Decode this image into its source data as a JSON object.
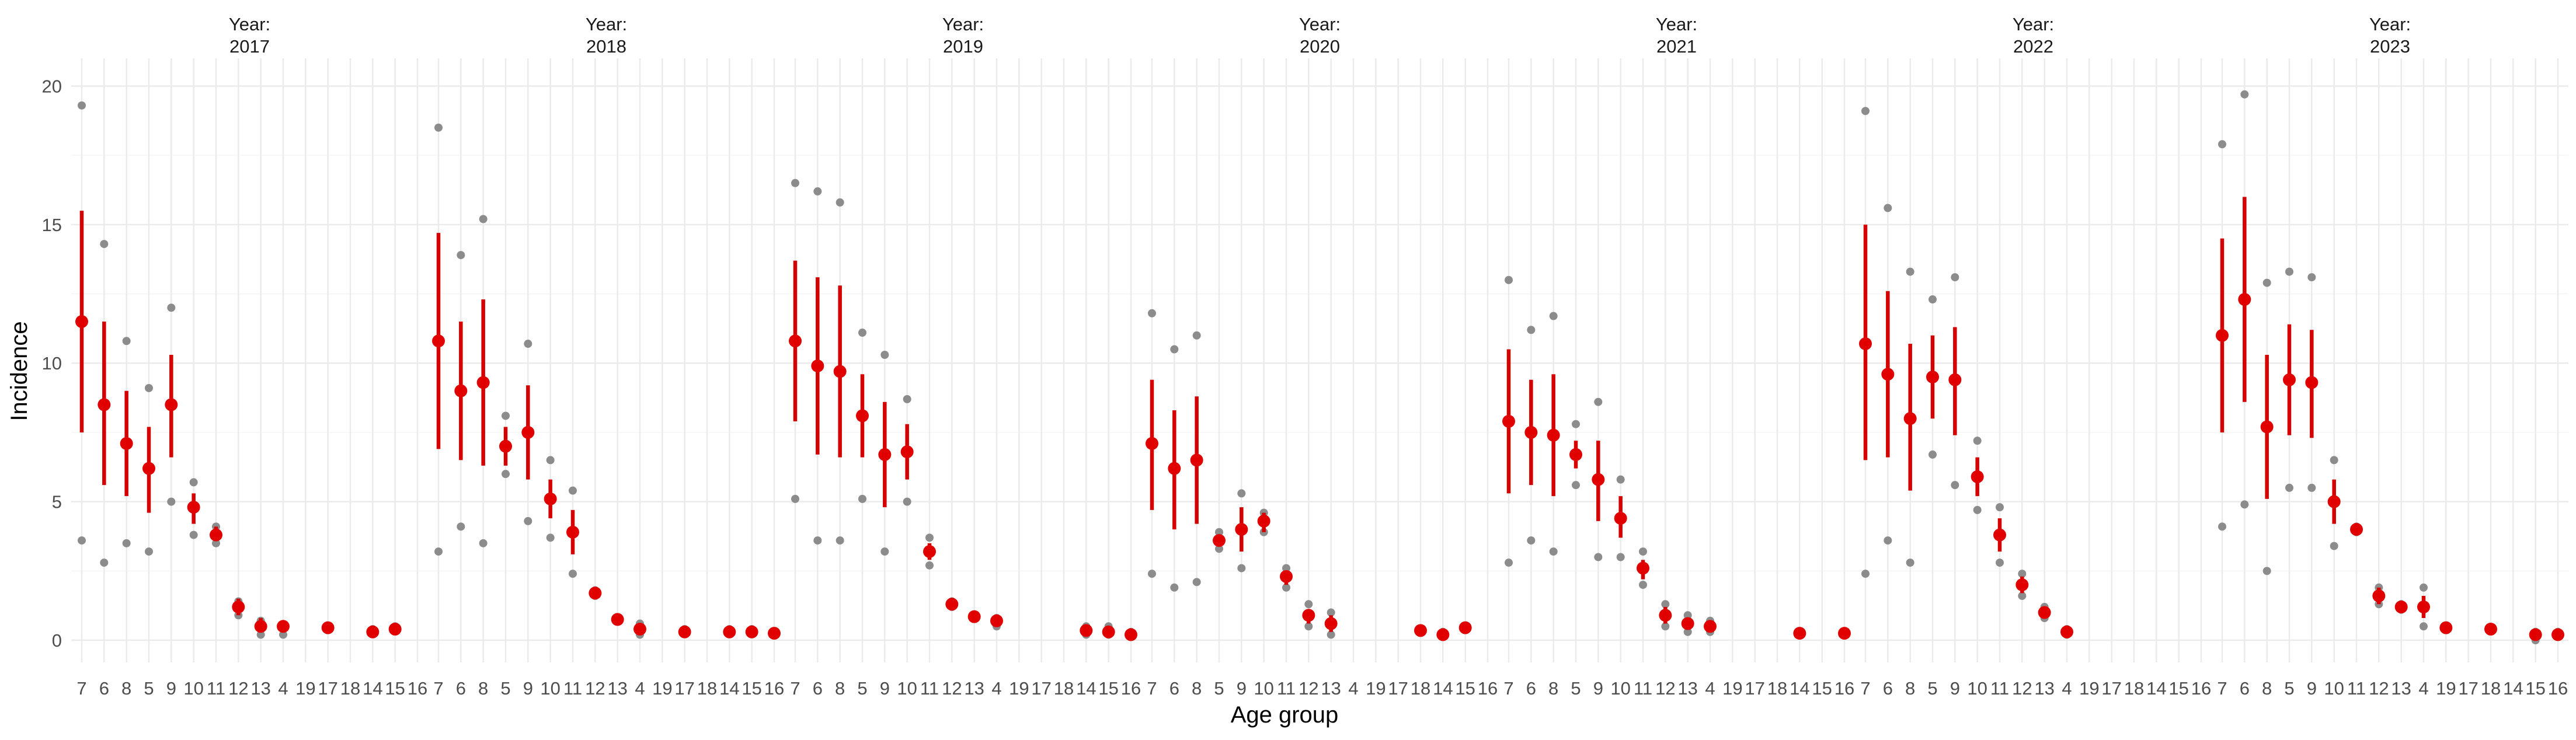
{
  "chart_data": {
    "type": "scatter",
    "title": "",
    "xlabel": "Age group",
    "ylabel": "Incidence",
    "ylim": [
      -0.8,
      21
    ],
    "yticks": [
      0,
      5,
      10,
      15,
      20
    ],
    "categories": [
      "7",
      "6",
      "8",
      "5",
      "9",
      "10",
      "11",
      "12",
      "13",
      "4",
      "19",
      "17",
      "18",
      "14",
      "15",
      "16"
    ],
    "facet_label_prefix": "Year:",
    "colors": {
      "mean": "#e00000",
      "ci": "#d40000",
      "obs": "#8c8c8c",
      "grid": "#ebebeb",
      "grid_minor": "#f5f5f5"
    },
    "panels": [
      {
        "year": "2017",
        "points": [
          {
            "age": "7",
            "mean": 11.5,
            "lo": 7.5,
            "hi": 15.5,
            "obs": [
              19.3,
              3.6
            ]
          },
          {
            "age": "6",
            "mean": 8.5,
            "lo": 5.6,
            "hi": 11.5,
            "obs": [
              14.3,
              2.8
            ]
          },
          {
            "age": "8",
            "mean": 7.1,
            "lo": 5.2,
            "hi": 9.0,
            "obs": [
              10.8,
              3.5
            ]
          },
          {
            "age": "5",
            "mean": 6.2,
            "lo": 4.6,
            "hi": 7.7,
            "obs": [
              9.1,
              3.2
            ]
          },
          {
            "age": "9",
            "mean": 8.5,
            "lo": 6.6,
            "hi": 10.3,
            "obs": [
              12.0,
              5.0
            ]
          },
          {
            "age": "10",
            "mean": 4.8,
            "lo": 4.2,
            "hi": 5.3,
            "obs": [
              5.7,
              3.8
            ]
          },
          {
            "age": "11",
            "mean": 3.8,
            "lo": 3.6,
            "hi": 4.1,
            "obs": [
              4.1,
              3.5
            ]
          },
          {
            "age": "12",
            "mean": 1.2,
            "lo": 0.9,
            "hi": 1.5,
            "obs": [
              1.4,
              0.9
            ]
          },
          {
            "age": "13",
            "mean": 0.5,
            "lo": 0.3,
            "hi": 0.8,
            "obs": [
              0.7,
              0.2
            ]
          },
          {
            "age": "4",
            "mean": 0.5,
            "lo": 0.4,
            "hi": 0.6,
            "obs": [
              0.5,
              0.2
            ]
          },
          {
            "age": "17",
            "mean": 0.45,
            "lo": 0.4,
            "hi": 0.5,
            "obs": [
              0.5
            ]
          },
          {
            "age": "14",
            "mean": 0.3,
            "lo": 0.2,
            "hi": 0.4,
            "obs": [
              0.4
            ]
          },
          {
            "age": "15",
            "mean": 0.4,
            "lo": 0.3,
            "hi": 0.5,
            "obs": [
              0.5
            ]
          }
        ]
      },
      {
        "year": "2018",
        "points": [
          {
            "age": "7",
            "mean": 10.8,
            "lo": 6.9,
            "hi": 14.7,
            "obs": [
              18.5,
              3.2
            ]
          },
          {
            "age": "6",
            "mean": 9.0,
            "lo": 6.5,
            "hi": 11.5,
            "obs": [
              13.9,
              4.1
            ]
          },
          {
            "age": "8",
            "mean": 9.3,
            "lo": 6.3,
            "hi": 12.3,
            "obs": [
              15.2,
              3.5
            ]
          },
          {
            "age": "5",
            "mean": 7.0,
            "lo": 6.3,
            "hi": 7.7,
            "obs": [
              8.1,
              6.0
            ]
          },
          {
            "age": "9",
            "mean": 7.5,
            "lo": 5.8,
            "hi": 9.2,
            "obs": [
              10.7,
              4.3
            ]
          },
          {
            "age": "10",
            "mean": 5.1,
            "lo": 4.4,
            "hi": 5.8,
            "obs": [
              6.5,
              3.7
            ]
          },
          {
            "age": "11",
            "mean": 3.9,
            "lo": 3.1,
            "hi": 4.7,
            "obs": [
              5.4,
              2.4
            ]
          },
          {
            "age": "12",
            "mean": 1.7,
            "lo": 1.5,
            "hi": 1.8,
            "obs": [
              1.8,
              1.6
            ]
          },
          {
            "age": "13",
            "mean": 0.75,
            "lo": 0.7,
            "hi": 0.8,
            "obs": [
              0.8,
              0.7
            ]
          },
          {
            "age": "4",
            "mean": 0.4,
            "lo": 0.3,
            "hi": 0.6,
            "obs": [
              0.6,
              0.2
            ]
          },
          {
            "age": "17",
            "mean": 0.3,
            "lo": 0.2,
            "hi": 0.4,
            "obs": [
              0.4
            ]
          },
          {
            "age": "14",
            "mean": 0.3,
            "lo": 0.2,
            "hi": 0.4,
            "obs": [
              0.4
            ]
          },
          {
            "age": "15",
            "mean": 0.3,
            "lo": 0.2,
            "hi": 0.4,
            "obs": [
              0.4
            ]
          },
          {
            "age": "16",
            "mean": 0.25,
            "lo": 0.2,
            "hi": 0.3,
            "obs": [
              0.3
            ]
          }
        ]
      },
      {
        "year": "2019",
        "points": [
          {
            "age": "7",
            "mean": 10.8,
            "lo": 7.9,
            "hi": 13.7,
            "obs": [
              16.5,
              5.1
            ]
          },
          {
            "age": "6",
            "mean": 9.9,
            "lo": 6.7,
            "hi": 13.1,
            "obs": [
              16.2,
              3.6
            ]
          },
          {
            "age": "8",
            "mean": 9.7,
            "lo": 6.6,
            "hi": 12.8,
            "obs": [
              15.8,
              3.6
            ]
          },
          {
            "age": "5",
            "mean": 8.1,
            "lo": 6.6,
            "hi": 9.6,
            "obs": [
              11.1,
              5.1
            ]
          },
          {
            "age": "9",
            "mean": 6.7,
            "lo": 4.8,
            "hi": 8.6,
            "obs": [
              10.3,
              3.2
            ]
          },
          {
            "age": "10",
            "mean": 6.8,
            "lo": 5.8,
            "hi": 7.8,
            "obs": [
              8.7,
              5.0
            ]
          },
          {
            "age": "11",
            "mean": 3.2,
            "lo": 2.9,
            "hi": 3.5,
            "obs": [
              3.7,
              2.7
            ]
          },
          {
            "age": "12",
            "mean": 1.3,
            "lo": 1.2,
            "hi": 1.4,
            "obs": [
              1.4,
              1.2
            ]
          },
          {
            "age": "13",
            "mean": 0.85,
            "lo": 0.8,
            "hi": 0.9,
            "obs": [
              0.9,
              0.8
            ]
          },
          {
            "age": "4",
            "mean": 0.7,
            "lo": 0.6,
            "hi": 0.8,
            "obs": [
              0.8,
              0.5
            ]
          },
          {
            "age": "14",
            "mean": 0.35,
            "lo": 0.2,
            "hi": 0.5,
            "obs": [
              0.5,
              0.2
            ]
          },
          {
            "age": "15",
            "mean": 0.3,
            "lo": 0.2,
            "hi": 0.4,
            "obs": [
              0.5,
              0.2
            ]
          },
          {
            "age": "16",
            "mean": 0.2,
            "lo": 0.15,
            "hi": 0.25,
            "obs": [
              0.3
            ]
          }
        ]
      },
      {
        "year": "2020",
        "points": [
          {
            "age": "7",
            "mean": 7.1,
            "lo": 4.7,
            "hi": 9.4,
            "obs": [
              11.8,
              2.4
            ]
          },
          {
            "age": "6",
            "mean": 6.2,
            "lo": 4.0,
            "hi": 8.3,
            "obs": [
              10.5,
              1.9
            ]
          },
          {
            "age": "8",
            "mean": 6.5,
            "lo": 4.2,
            "hi": 8.8,
            "obs": [
              11.0,
              2.1
            ]
          },
          {
            "age": "5",
            "mean": 3.6,
            "lo": 3.4,
            "hi": 3.8,
            "obs": [
              3.9,
              3.3
            ]
          },
          {
            "age": "9",
            "mean": 4.0,
            "lo": 3.2,
            "hi": 4.8,
            "obs": [
              5.3,
              2.6
            ]
          },
          {
            "age": "10",
            "mean": 4.3,
            "lo": 3.9,
            "hi": 4.6,
            "obs": [
              4.6,
              3.9
            ]
          },
          {
            "age": "11",
            "mean": 2.3,
            "lo": 2.0,
            "hi": 2.5,
            "obs": [
              2.6,
              1.9
            ]
          },
          {
            "age": "12",
            "mean": 0.9,
            "lo": 0.6,
            "hi": 1.1,
            "obs": [
              1.3,
              0.5
            ]
          },
          {
            "age": "13",
            "mean": 0.6,
            "lo": 0.3,
            "hi": 0.9,
            "obs": [
              1.0,
              0.2
            ]
          },
          {
            "age": "18",
            "mean": 0.35,
            "lo": 0.3,
            "hi": 0.4,
            "obs": [
              0.4
            ]
          },
          {
            "age": "14",
            "mean": 0.2,
            "lo": 0.15,
            "hi": 0.25,
            "obs": [
              0.3
            ]
          },
          {
            "age": "15",
            "mean": 0.45,
            "lo": 0.35,
            "hi": 0.55,
            "obs": [
              0.5
            ]
          }
        ]
      },
      {
        "year": "2021",
        "points": [
          {
            "age": "7",
            "mean": 7.9,
            "lo": 5.3,
            "hi": 10.5,
            "obs": [
              13.0,
              2.8
            ]
          },
          {
            "age": "6",
            "mean": 7.5,
            "lo": 5.6,
            "hi": 9.4,
            "obs": [
              11.2,
              3.6
            ]
          },
          {
            "age": "8",
            "mean": 7.4,
            "lo": 5.2,
            "hi": 9.6,
            "obs": [
              11.7,
              3.2
            ]
          },
          {
            "age": "5",
            "mean": 6.7,
            "lo": 6.2,
            "hi": 7.2,
            "obs": [
              7.8,
              5.6
            ]
          },
          {
            "age": "9",
            "mean": 5.8,
            "lo": 4.3,
            "hi": 7.2,
            "obs": [
              8.6,
              3.0
            ]
          },
          {
            "age": "10",
            "mean": 4.4,
            "lo": 3.7,
            "hi": 5.2,
            "obs": [
              5.8,
              3.0
            ]
          },
          {
            "age": "11",
            "mean": 2.6,
            "lo": 2.2,
            "hi": 2.9,
            "obs": [
              3.2,
              2.0
            ]
          },
          {
            "age": "12",
            "mean": 0.9,
            "lo": 0.6,
            "hi": 1.2,
            "obs": [
              1.3,
              0.5
            ]
          },
          {
            "age": "13",
            "mean": 0.6,
            "lo": 0.4,
            "hi": 0.8,
            "obs": [
              0.9,
              0.3
            ]
          },
          {
            "age": "4",
            "mean": 0.5,
            "lo": 0.3,
            "hi": 0.7,
            "obs": [
              0.7,
              0.3
            ]
          },
          {
            "age": "14",
            "mean": 0.25,
            "lo": 0.2,
            "hi": 0.3,
            "obs": [
              0.3
            ]
          },
          {
            "age": "16",
            "mean": 0.25,
            "lo": 0.2,
            "hi": 0.3,
            "obs": [
              0.3
            ]
          }
        ]
      },
      {
        "year": "2022",
        "points": [
          {
            "age": "7",
            "mean": 10.7,
            "lo": 6.5,
            "hi": 15.0,
            "obs": [
              19.1,
              2.4
            ]
          },
          {
            "age": "6",
            "mean": 9.6,
            "lo": 6.6,
            "hi": 12.6,
            "obs": [
              15.6,
              3.6
            ]
          },
          {
            "age": "8",
            "mean": 8.0,
            "lo": 5.4,
            "hi": 10.7,
            "obs": [
              13.3,
              2.8
            ]
          },
          {
            "age": "5",
            "mean": 9.5,
            "lo": 8.0,
            "hi": 11.0,
            "obs": [
              12.3,
              6.7
            ]
          },
          {
            "age": "9",
            "mean": 9.4,
            "lo": 7.4,
            "hi": 11.3,
            "obs": [
              13.1,
              5.6
            ]
          },
          {
            "age": "10",
            "mean": 5.9,
            "lo": 5.2,
            "hi": 6.6,
            "obs": [
              7.2,
              4.7
            ]
          },
          {
            "age": "11",
            "mean": 3.8,
            "lo": 3.2,
            "hi": 4.4,
            "obs": [
              4.8,
              2.8
            ]
          },
          {
            "age": "12",
            "mean": 2.0,
            "lo": 1.7,
            "hi": 2.3,
            "obs": [
              2.4,
              1.6
            ]
          },
          {
            "age": "13",
            "mean": 1.0,
            "lo": 0.8,
            "hi": 1.1,
            "obs": [
              1.2,
              0.8
            ]
          },
          {
            "age": "4",
            "mean": 0.3,
            "lo": 0.2,
            "hi": 0.4,
            "obs": [
              0.4,
              0.2
            ]
          }
        ]
      },
      {
        "year": "2023",
        "points": [
          {
            "age": "7",
            "mean": 11.0,
            "lo": 7.5,
            "hi": 14.5,
            "obs": [
              17.9,
              4.1
            ]
          },
          {
            "age": "6",
            "mean": 12.3,
            "lo": 8.6,
            "hi": 16.0,
            "obs": [
              19.7,
              4.9
            ]
          },
          {
            "age": "8",
            "mean": 7.7,
            "lo": 5.1,
            "hi": 10.3,
            "obs": [
              12.9,
              2.5
            ]
          },
          {
            "age": "5",
            "mean": 9.4,
            "lo": 7.4,
            "hi": 11.4,
            "obs": [
              13.3,
              5.5
            ]
          },
          {
            "age": "9",
            "mean": 9.3,
            "lo": 7.3,
            "hi": 11.2,
            "obs": [
              13.1,
              5.5
            ]
          },
          {
            "age": "10",
            "mean": 5.0,
            "lo": 4.2,
            "hi": 5.8,
            "obs": [
              6.5,
              3.4
            ]
          },
          {
            "age": "11",
            "mean": 4.0,
            "lo": 3.95,
            "hi": 4.05,
            "obs": [
              4.1,
              3.9
            ]
          },
          {
            "age": "12",
            "mean": 1.6,
            "lo": 1.3,
            "hi": 1.9,
            "obs": [
              1.9,
              1.3
            ]
          },
          {
            "age": "13",
            "mean": 1.2,
            "lo": 1.1,
            "hi": 1.3,
            "obs": [
              1.3,
              1.1
            ]
          },
          {
            "age": "4",
            "mean": 1.2,
            "lo": 0.8,
            "hi": 1.6,
            "obs": [
              1.9,
              0.5
            ]
          },
          {
            "age": "19",
            "mean": 0.45,
            "lo": 0.35,
            "hi": 0.55,
            "obs": [
              0.5
            ]
          },
          {
            "age": "18",
            "mean": 0.4,
            "lo": 0.35,
            "hi": 0.45,
            "obs": [
              0.45
            ]
          },
          {
            "age": "15",
            "mean": 0.2,
            "lo": 0.05,
            "hi": 0.3,
            "obs": [
              0.3,
              0.0
            ]
          },
          {
            "age": "16",
            "mean": 0.2,
            "lo": 0.1,
            "hi": 0.3,
            "obs": [
              0.3
            ]
          }
        ]
      }
    ]
  }
}
